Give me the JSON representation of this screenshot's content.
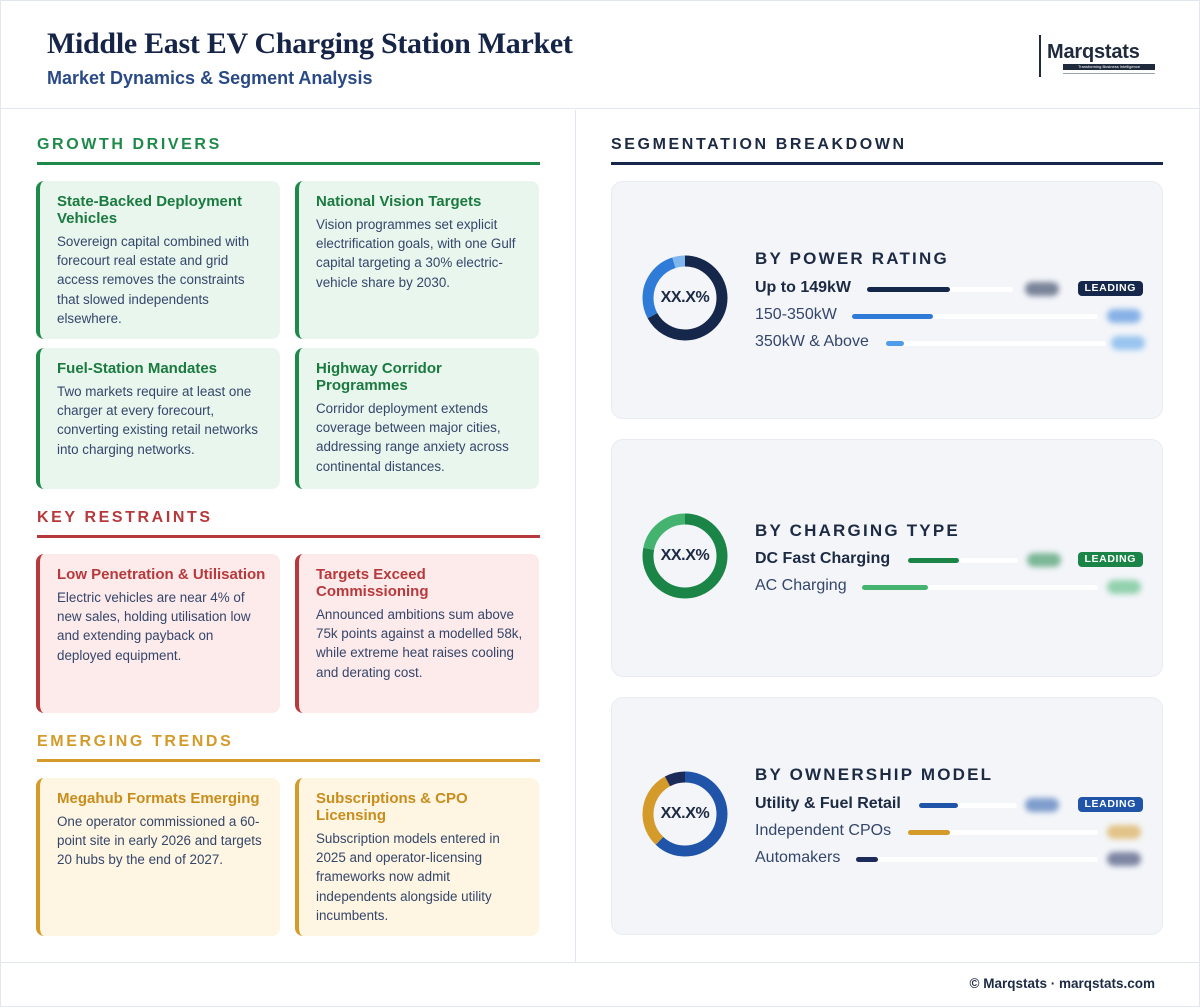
{
  "header": {
    "title": "Middle East EV Charging Station Market",
    "subtitle": "Market Dynamics & Segment Analysis",
    "logo_word": "Marqstats",
    "logo_tagline": "Transforming Business Intelligence"
  },
  "growth_drivers": {
    "heading": "GROWTH DRIVERS",
    "color": "#1e8a4a",
    "cards": [
      {
        "title": "State-Backed Deployment Vehicles",
        "body": "Sovereign capital combined with forecourt real estate and grid access removes the constraints that slowed independents elsewhere."
      },
      {
        "title": "National Vision Targets",
        "body": "Vision programmes set explicit electrification goals, with one Gulf capital targeting a 30% electric-vehicle share by 2030."
      },
      {
        "title": "Fuel-Station Mandates",
        "body": "Two markets require at least one charger at every forecourt, converting existing retail networks into charging networks."
      },
      {
        "title": "Highway Corridor Programmes",
        "body": "Corridor deployment extends coverage between major cities, addressing range anxiety across continental distances."
      }
    ]
  },
  "key_restraints": {
    "heading": "KEY RESTRAINTS",
    "color": "#b8393b",
    "cards": [
      {
        "title": "Low Penetration & Utilisation",
        "body": "Electric vehicles are near 4% of new sales, holding utilisation low and extending payback on deployed equipment."
      },
      {
        "title": "Targets Exceed Commissioning",
        "body": "Announced ambitions sum above 75k points against a modelled 58k, while extreme heat raises cooling and derating cost."
      }
    ]
  },
  "emerging_trends": {
    "heading": "EMERGING TRENDS",
    "color": "#d49a2a",
    "cards": [
      {
        "title": "Megahub Formats Emerging",
        "body": "One operator commissioned a 60-point site in early 2026 and targets 20 hubs by the end of 2027."
      },
      {
        "title": "Subscriptions & CPO Licensing",
        "body": "Subscription models entered in 2025 and operator-licensing frameworks now admit independents alongside utility incumbents."
      }
    ]
  },
  "segmentation": {
    "heading": "SEGMENTATION BREAKDOWN",
    "leading_label": "LEADING",
    "panels": [
      {
        "title": "BY POWER RATING",
        "donut_label": "XX.X%",
        "rings": [
          {
            "color": "#15274a",
            "share": 0.67
          },
          {
            "color": "#2f7bd8",
            "share": 0.28
          },
          {
            "color": "#7fb6ee",
            "share": 0.05
          }
        ],
        "rows": [
          {
            "name": "Up to 149kW",
            "color": "#15274a",
            "fill": 0.57,
            "leading": true
          },
          {
            "name": "150-350kW",
            "color": "#2f7bd8",
            "fill": 0.33,
            "leading": false
          },
          {
            "name": "350kW & Above",
            "color": "#4f9de8",
            "fill": 0.08,
            "leading": false
          }
        ]
      },
      {
        "title": "BY CHARGING TYPE",
        "donut_label": "XX.X%",
        "rings": [
          {
            "color": "#1b8447",
            "share": 0.78
          },
          {
            "color": "#43b36f",
            "share": 0.22
          }
        ],
        "rows": [
          {
            "name": "DC Fast Charging",
            "color": "#1b8447",
            "fill": 0.46,
            "leading": true
          },
          {
            "name": "AC Charging",
            "color": "#43b36f",
            "fill": 0.28,
            "leading": false
          }
        ]
      },
      {
        "title": "BY OWNERSHIP MODEL",
        "donut_label": "XX.X%",
        "rings": [
          {
            "color": "#1f54a8",
            "share": 0.62
          },
          {
            "color": "#d49a2a",
            "share": 0.3
          },
          {
            "color": "#1c2a5a",
            "share": 0.08
          }
        ],
        "rows": [
          {
            "name": "Utility & Fuel Retail",
            "color": "#1f54a8",
            "fill": 0.4,
            "leading": true
          },
          {
            "name": "Independent CPOs",
            "color": "#d49a2a",
            "fill": 0.22,
            "leading": false
          },
          {
            "name": "Automakers",
            "color": "#1c2a5a",
            "fill": 0.09,
            "leading": false
          }
        ]
      }
    ]
  },
  "footer": {
    "text": "© Marqstats · marqstats.com"
  }
}
